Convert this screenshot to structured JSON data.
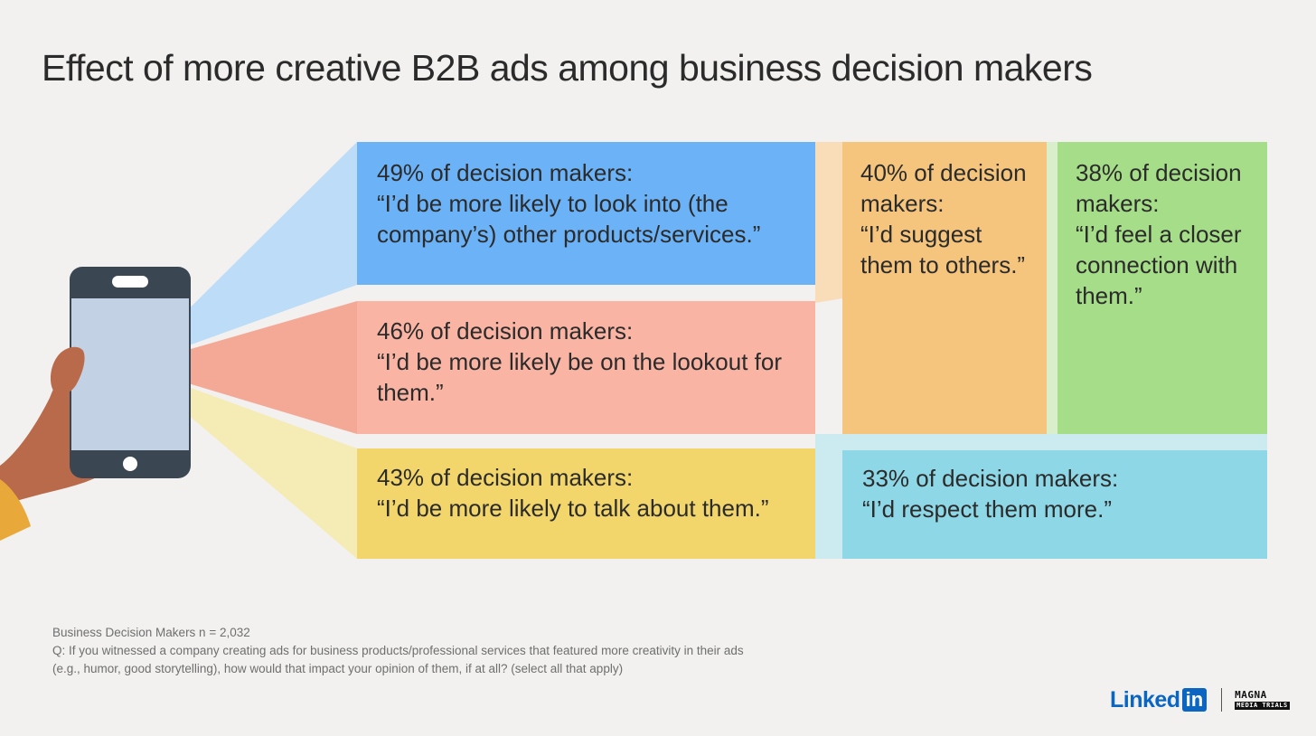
{
  "title": "Effect of more creative B2B ads among business decision makers",
  "chart_data": {
    "type": "table",
    "title": "Effect of more creative B2B ads among business decision makers",
    "unit": "% of decision makers",
    "items": [
      {
        "pct_label": "49% of decision makers:",
        "value": 49,
        "quote": "“I’d be more likely to look into (the company’s) other products/services.”",
        "color": "#6bb2f7"
      },
      {
        "pct_label": "46% of decision makers:",
        "value": 46,
        "quote": "“I’d be more likely be on the lookout for them.”",
        "color": "#f9b4a3"
      },
      {
        "pct_label": "43% of decision makers:",
        "value": 43,
        "quote": "“I’d be more likely to talk about them.”",
        "color": "#f2d66b"
      },
      {
        "pct_label": "40% of decision makers:",
        "value": 40,
        "quote": "“I’d suggest them to others.”",
        "color": "#f5c57e"
      },
      {
        "pct_label": "38% of decision makers:",
        "value": 38,
        "quote": "“I’d feel a closer connection with them.”",
        "color": "#a6dd88"
      },
      {
        "pct_label": "33% of decision makers:",
        "value": 33,
        "quote": "“I’d respect them more.”",
        "color": "#8ed7e6"
      }
    ]
  },
  "footnote": {
    "sample": "Business Decision Makers n = 2,032",
    "question_line1": "Q: If you witnessed a company creating ads for business products/professional services that featured more creativity in their ads",
    "question_line2": "(e.g., humor, good storytelling), how would that impact your opinion of them, if at all? (select all that apply)"
  },
  "logos": {
    "linkedin_word": "Linked",
    "linkedin_box": "in",
    "magna_line1": "MAGNA",
    "magna_line2": "MEDIA TRIALS"
  }
}
